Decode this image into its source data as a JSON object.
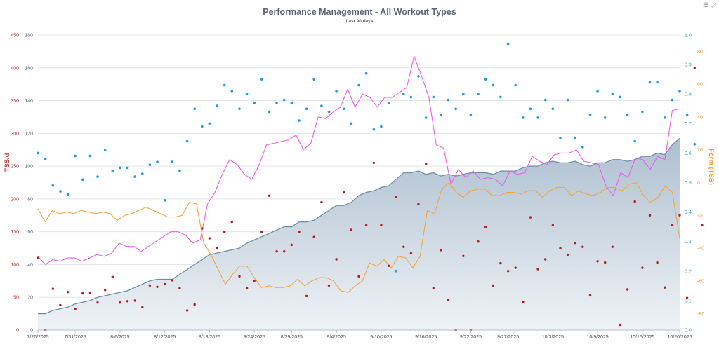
{
  "chart_data": {
    "type": "line",
    "title": "Performance Management - All Workout Types",
    "subtitle": "Last 90 days",
    "left_axis_label": "TSS/d",
    "right_axis_label": "Form (TSB)",
    "tss_ticks": [
      "0",
      "50",
      "100",
      "150",
      "200",
      "250",
      "300",
      "350",
      "400",
      "450"
    ],
    "ctl_ticks": [
      "0",
      "20",
      "40",
      "60",
      "80",
      "100",
      "120",
      "140",
      "160",
      "180"
    ],
    "if_ticks": [
      "0.0",
      "0.1",
      "0.2",
      "0.3",
      "0.4",
      "0.5",
      "0.6",
      "0.7",
      "0.8",
      "0.9",
      "1.0"
    ],
    "tsb_ticks": [
      "-80",
      "-60",
      "-40",
      "-20",
      "0",
      "20",
      "40",
      "60",
      "80"
    ],
    "x_tick_labels": [
      "7/26/2025",
      "7/31/2025",
      "8/6/2025",
      "8/12/2025",
      "8/18/2025",
      "8/24/2025",
      "8/29/2025",
      "9/4/2025",
      "9/10/2025",
      "9/16/2025",
      "9/22/2025",
      "9/27/2025",
      "10/3/2025",
      "10/9/2025",
      "10/15/2025",
      "10/20/2025"
    ],
    "x_tick_days": [
      0,
      5,
      11,
      17,
      23,
      29,
      34,
      40,
      46,
      52,
      58,
      63,
      69,
      75,
      81,
      86
    ],
    "y_ranges": {
      "tss": [
        0,
        450
      ],
      "ctl": [
        0,
        180
      ],
      "if": [
        0,
        1
      ],
      "tsb": [
        -90,
        90
      ]
    },
    "colors": {
      "ctl_line": "#6f8ea6",
      "ctl_fill": "#b7c7d6",
      "atl": "#ee5bee",
      "tsb": "#f4a33c",
      "tss": "#b81c1c",
      "if": "#1f9be0",
      "left_axis": "#c0392b",
      "right_axis_if": "#2a9fd6",
      "right_axis_tsb": "#f0962e",
      "grid": "#e3e5e8"
    },
    "ctl": [
      10,
      10,
      12,
      13,
      14,
      16,
      17,
      18,
      20,
      21,
      22,
      23,
      24,
      26,
      28,
      30,
      31,
      31,
      31,
      34,
      37,
      40,
      43,
      46,
      47,
      48,
      49,
      50,
      53,
      55,
      57,
      59,
      61,
      63,
      63,
      66,
      66,
      67,
      70,
      73,
      76,
      76,
      78,
      82,
      84,
      85,
      87,
      88,
      92,
      96,
      96,
      97,
      95,
      96,
      94,
      95,
      94,
      95,
      96,
      96,
      96,
      95,
      97,
      97,
      97,
      99,
      100,
      100,
      102,
      103,
      102,
      102,
      103,
      101,
      100,
      102,
      102,
      104,
      104,
      103,
      104,
      106,
      106,
      108,
      107,
      113,
      117
    ],
    "atl": [
      45,
      40,
      43,
      42,
      44,
      44,
      42,
      44,
      46,
      45,
      47,
      53,
      51,
      51,
      48,
      51,
      54,
      57,
      60,
      60,
      58,
      53,
      55,
      77,
      84,
      95,
      104,
      101,
      95,
      92,
      101,
      113,
      114,
      115,
      116,
      119,
      110,
      114,
      130,
      129,
      133,
      136,
      147,
      136,
      144,
      142,
      136,
      142,
      142,
      145,
      148,
      167,
      155,
      142,
      113,
      111,
      89,
      98,
      93,
      97,
      92,
      93,
      92,
      88,
      97,
      95,
      96,
      106,
      103,
      101,
      107,
      108,
      108,
      110,
      103,
      102,
      101,
      88,
      82,
      96,
      93,
      105,
      104,
      98,
      106,
      104,
      134,
      135
    ],
    "tsb": [
      -16,
      -24,
      -17,
      -19,
      -18,
      -19,
      -17,
      -18,
      -19,
      -18,
      -19,
      -23,
      -20,
      -19,
      -17,
      -15,
      -17,
      -19,
      -21,
      -21,
      -20,
      -12,
      -13,
      -37,
      -44,
      -53,
      -62,
      -56,
      -51,
      -51,
      -58,
      -64,
      -63,
      -64,
      -64,
      -63,
      -59,
      -63,
      -60,
      -58,
      -58,
      -60,
      -66,
      -67,
      -63,
      -60,
      -49,
      -51,
      -47,
      -52,
      -45,
      -46,
      -52,
      -45,
      -17,
      -19,
      -4,
      0,
      -6,
      -9,
      -5,
      -4,
      -4,
      -8,
      -8,
      -6,
      -6,
      -7,
      -5,
      -5,
      -9,
      -5,
      -3,
      -3,
      -8,
      -5,
      -7,
      -8,
      -6,
      -3,
      -3,
      -5,
      -1,
      0,
      -8,
      -12,
      -9,
      -2,
      -6,
      -34
    ],
    "tss_points": [
      [
        0,
        110
      ],
      [
        1,
        0
      ],
      [
        2,
        63
      ],
      [
        3,
        38
      ],
      [
        4,
        58
      ],
      [
        5,
        32
      ],
      [
        6,
        56
      ],
      [
        7,
        57
      ],
      [
        8,
        42
      ],
      [
        9,
        61
      ],
      [
        10,
        81
      ],
      [
        11,
        42
      ],
      [
        12,
        44
      ],
      [
        13,
        45
      ],
      [
        14,
        35
      ],
      [
        15,
        68
      ],
      [
        16,
        66
      ],
      [
        17,
        70
      ],
      [
        18,
        76
      ],
      [
        19,
        64
      ],
      [
        20,
        30
      ],
      [
        21,
        39
      ],
      [
        22,
        155
      ],
      [
        23,
        140
      ],
      [
        24,
        125
      ],
      [
        25,
        150
      ],
      [
        26,
        165
      ],
      [
        27,
        82
      ],
      [
        28,
        64
      ],
      [
        29,
        75
      ],
      [
        30,
        150
      ],
      [
        31,
        205
      ],
      [
        32,
        120
      ],
      [
        33,
        120
      ],
      [
        34,
        130
      ],
      [
        35,
        150
      ],
      [
        36,
        52
      ],
      [
        37,
        142
      ],
      [
        38,
        195
      ],
      [
        39,
        68
      ],
      [
        40,
        108
      ],
      [
        41,
        210
      ],
      [
        42,
        153
      ],
      [
        43,
        82
      ],
      [
        44,
        160
      ],
      [
        45,
        255
      ],
      [
        46,
        160
      ],
      [
        47,
        98
      ],
      [
        48,
        203
      ],
      [
        49,
        127
      ],
      [
        50,
        117
      ],
      [
        51,
        192
      ],
      [
        52,
        253
      ],
      [
        53,
        64
      ],
      [
        54,
        122
      ],
      [
        55,
        46
      ],
      [
        56,
        0
      ],
      [
        57,
        113
      ],
      [
        58,
        0
      ],
      [
        59,
        135
      ],
      [
        60,
        157
      ],
      [
        61,
        68
      ],
      [
        62,
        102
      ],
      [
        63,
        90
      ],
      [
        64,
        95
      ],
      [
        65,
        43
      ],
      [
        66,
        172
      ],
      [
        67,
        93
      ],
      [
        68,
        108
      ],
      [
        69,
        160
      ],
      [
        70,
        125
      ],
      [
        71,
        115
      ],
      [
        72,
        133
      ],
      [
        73,
        127
      ],
      [
        74,
        53
      ],
      [
        75,
        105
      ],
      [
        76,
        103
      ],
      [
        77,
        127
      ],
      [
        78,
        8
      ],
      [
        79,
        62
      ],
      [
        80,
        196
      ],
      [
        81,
        95
      ],
      [
        82,
        175
      ],
      [
        83,
        103
      ],
      [
        84,
        65
      ],
      [
        85,
        160
      ],
      [
        86,
        175
      ],
      [
        87,
        49
      ],
      [
        88,
        400
      ],
      [
        89,
        160
      ]
    ],
    "if_points": [
      [
        0,
        0.6
      ],
      [
        1,
        0.58
      ],
      [
        2,
        0.49
      ],
      [
        3,
        0.47
      ],
      [
        4,
        0.46
      ],
      [
        5,
        0.59
      ],
      [
        6,
        0.51
      ],
      [
        7,
        0.59
      ],
      [
        8,
        0.52
      ],
      [
        9,
        0.61
      ],
      [
        10,
        0.54
      ],
      [
        11,
        0.55
      ],
      [
        12,
        0.55
      ],
      [
        13,
        0.52
      ],
      [
        14,
        0.53
      ],
      [
        15,
        0.56
      ],
      [
        16,
        0.57
      ],
      [
        17,
        0.44
      ],
      [
        18,
        0.57
      ],
      [
        19,
        0.54
      ],
      [
        20,
        0.64
      ],
      [
        21,
        0.75
      ],
      [
        22,
        0.69
      ],
      [
        23,
        0.7
      ],
      [
        24,
        0.76
      ],
      [
        25,
        0.83
      ],
      [
        26,
        0.81
      ],
      [
        27,
        0.75
      ],
      [
        28,
        0.8
      ],
      [
        29,
        0.77
      ],
      [
        30,
        0.85
      ],
      [
        31,
        0.74
      ],
      [
        32,
        0.77
      ],
      [
        33,
        0.78
      ],
      [
        34,
        0.77
      ],
      [
        35,
        0.71
      ],
      [
        36,
        0.75
      ],
      [
        37,
        0.85
      ],
      [
        38,
        0.76
      ],
      [
        39,
        0.74
      ],
      [
        40,
        0.81
      ],
      [
        41,
        0.75
      ],
      [
        42,
        0.7
      ],
      [
        43,
        0.83
      ],
      [
        44,
        0.87
      ],
      [
        45,
        0.68
      ],
      [
        46,
        0.69
      ],
      [
        47,
        0.77
      ],
      [
        48,
        0.2
      ],
      [
        49,
        0.8
      ],
      [
        50,
        0.79
      ],
      [
        51,
        0.86
      ],
      [
        52,
        0.72
      ],
      [
        53,
        0.79
      ],
      [
        54,
        0.73
      ],
      [
        55,
        0.78
      ],
      [
        56,
        0.75
      ],
      [
        57,
        0.8
      ],
      [
        58,
        0.73
      ],
      [
        59,
        0.8
      ],
      [
        60,
        0.85
      ],
      [
        61,
        0.83
      ],
      [
        62,
        0.79
      ],
      [
        63,
        0.97
      ],
      [
        64,
        0.83
      ],
      [
        65,
        0.72
      ],
      [
        66,
        0.75
      ],
      [
        67,
        0.72
      ],
      [
        68,
        0.78
      ],
      [
        69,
        0.75
      ],
      [
        70,
        0.65
      ],
      [
        71,
        0.78
      ],
      [
        72,
        0.65
      ],
      [
        73,
        0.62
      ],
      [
        74,
        0.73
      ],
      [
        75,
        0.81
      ],
      [
        76,
        0.72
      ],
      [
        77,
        0.8
      ],
      [
        78,
        0.79
      ],
      [
        79,
        0.73
      ],
      [
        80,
        0.64
      ],
      [
        81,
        0.74
      ],
      [
        82,
        0.84
      ],
      [
        83,
        0.84
      ],
      [
        84,
        0.72
      ],
      [
        85,
        0.78
      ],
      [
        86,
        0.81
      ],
      [
        87,
        0.73
      ],
      [
        88,
        0.63
      ]
    ]
  }
}
